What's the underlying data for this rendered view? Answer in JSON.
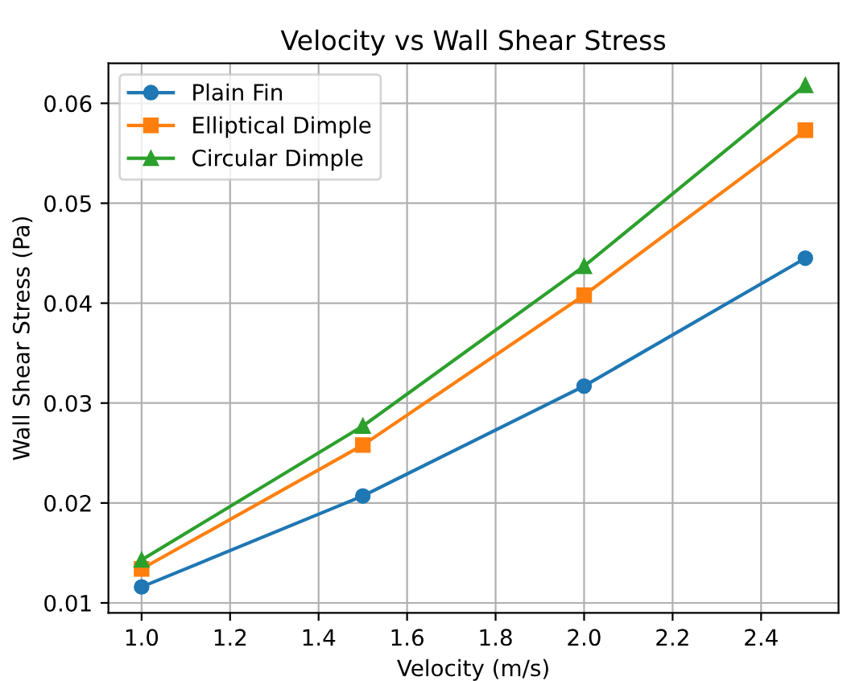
{
  "chart_data": {
    "type": "line",
    "title": "Velocity vs Wall Shear Stress",
    "xlabel": "Velocity (m/s)",
    "ylabel": "Wall Shear Stress (Pa)",
    "x": [
      1.0,
      1.5,
      2.0,
      2.5
    ],
    "series": [
      {
        "name": "Plain Fin",
        "color": "#1f77b4",
        "marker": "circle",
        "values": [
          0.0116,
          0.0207,
          0.0317,
          0.0445
        ]
      },
      {
        "name": "Elliptical Dimple",
        "color": "#ff7f0e",
        "marker": "square",
        "values": [
          0.0134,
          0.0258,
          0.0408,
          0.0573
        ]
      },
      {
        "name": "Circular Dimple",
        "color": "#2ca02c",
        "marker": "triangle",
        "values": [
          0.0143,
          0.0277,
          0.0437,
          0.0618
        ]
      }
    ],
    "xlim": [
      0.925,
      2.575
    ],
    "xticks": [
      {
        "value": 1.0,
        "label": "1.0"
      },
      {
        "value": 1.2,
        "label": "1.2"
      },
      {
        "value": 1.4,
        "label": "1.4"
      },
      {
        "value": 1.6,
        "label": "1.6"
      },
      {
        "value": 1.8,
        "label": "1.8"
      },
      {
        "value": 2.0,
        "label": "2.0"
      },
      {
        "value": 2.2,
        "label": "2.2"
      },
      {
        "value": 2.4,
        "label": "2.4"
      }
    ],
    "ylim": [
      0.009,
      0.064
    ],
    "yticks": [
      0.01,
      0.02,
      0.03,
      0.04,
      0.05,
      0.06
    ],
    "grid": true,
    "legend": "top left",
    "line_style": "solid"
  }
}
